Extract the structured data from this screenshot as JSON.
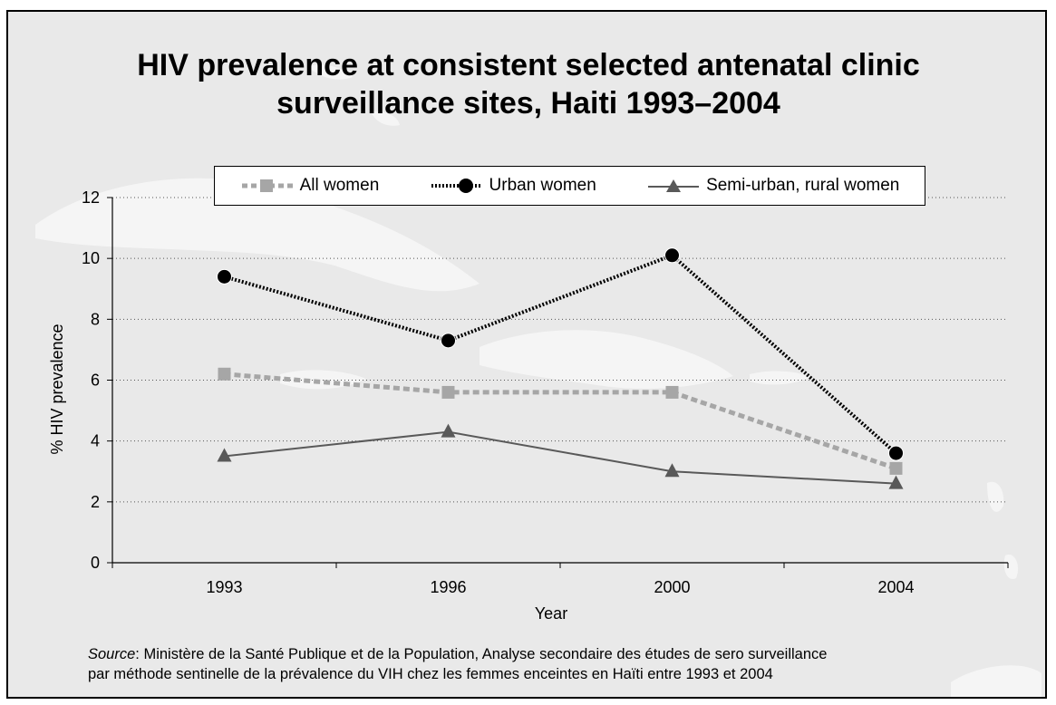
{
  "title_line1": "HIV prevalence at consistent selected antenatal clinic",
  "title_line2": "surveillance sites, Haiti 1993–2004",
  "source_label": "Source",
  "source_line1": ": Ministère de la Santé Publique et de la Population, Analyse secondaire des études de sero surveillance",
  "source_line2": "par méthode sentinelle de la prévalence du VIH chez les femmes enceintes en Haïti entre 1993 et 2004",
  "colors": {
    "all_women": "#a6a6a6",
    "urban_women": "#000000",
    "semi_urban_rural": "#595959",
    "background": "#e9e9e9",
    "map_land": "#f5f5f5"
  },
  "chart_data": {
    "type": "line",
    "title": "HIV prevalence at consistent selected antenatal clinic surveillance sites, Haiti 1993–2004",
    "xlabel": "Year",
    "ylabel": "% HIV prevalence",
    "categories": [
      "1993",
      "1996",
      "2000",
      "2004"
    ],
    "ylim": [
      0,
      12
    ],
    "yticks": [
      0,
      2,
      4,
      6,
      8,
      10,
      12
    ],
    "grid": "horizontal dotted",
    "legend_position": "top",
    "series": [
      {
        "name": "All women",
        "values": [
          6.2,
          5.6,
          5.6,
          3.1
        ],
        "marker": "square",
        "line": "dashed",
        "color": "#a6a6a6"
      },
      {
        "name": "Urban women",
        "values": [
          9.4,
          7.3,
          10.1,
          3.6
        ],
        "marker": "circle",
        "line": "dotted",
        "color": "#000000"
      },
      {
        "name": "Semi-urban, rural women",
        "values": [
          3.5,
          4.3,
          3.0,
          2.6
        ],
        "marker": "triangle",
        "line": "solid",
        "color": "#595959"
      }
    ]
  }
}
